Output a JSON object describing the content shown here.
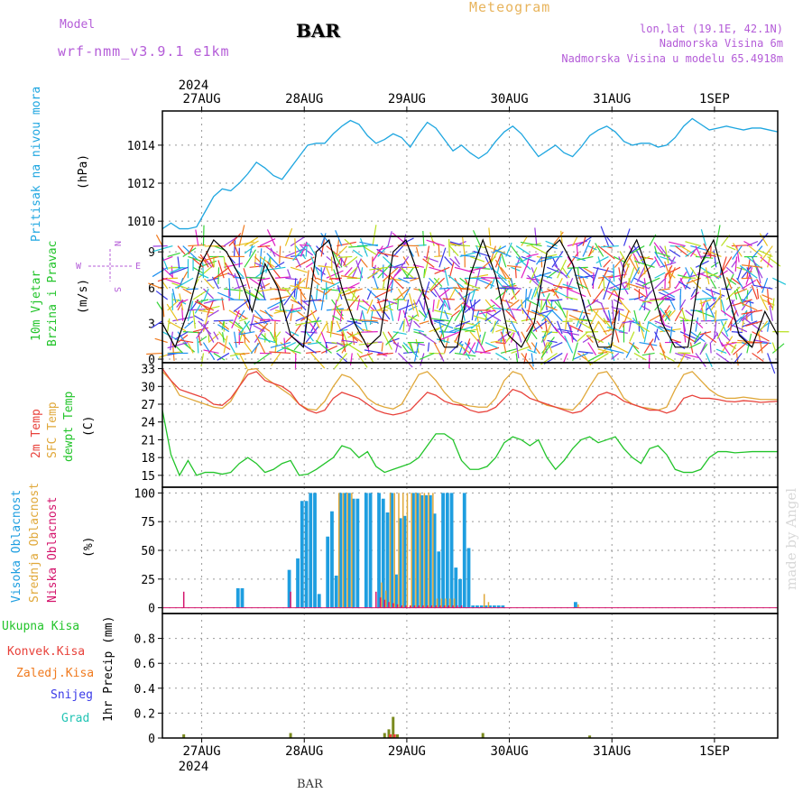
{
  "header": {
    "model_label": "Model",
    "model_name": "wrf-nmm_v3.9.1 e1km",
    "station": "BAR",
    "title": "Meteogram",
    "lonlat": "lon,lat (19.1E, 42.1N)",
    "elevation": "Nadmorska Visina 6m",
    "model_elevation": "Nadmorska Visina u modelu 65.4918m",
    "footer_station": "BAR",
    "watermark": "made by Angel"
  },
  "colors": {
    "pressure": "#1ea6e0",
    "temp2m": "#e8413a",
    "sfc_temp": "#e0a83a",
    "dewpoint": "#22c42a",
    "high_cloud": "#1e9ee0",
    "mid_cloud": "#e0a83a",
    "low_cloud": "#d4146c",
    "total_precip": "#22c42a",
    "conv_precip": "#e8413a",
    "frozen_precip": "#f07a1e",
    "snow": "#3a3ae8",
    "hail": "#22c4b4",
    "purple_text": "#b45cd8",
    "title_orange": "#e8b45c",
    "gust": "#000000"
  },
  "chart_data": [
    {
      "type": "line",
      "name": "pressure",
      "ylabel_left": "Pritisak na nivou mora",
      "unit": "(hPa)",
      "ylim": [
        1009.2,
        1015.8
      ],
      "yticks": [
        1010,
        1012,
        1014
      ],
      "grid": true,
      "top_axis": {
        "year": "2024",
        "labels": [
          "27AUG",
          "28AUG",
          "29AUG",
          "30AUG",
          "31AUG",
          "1SEP"
        ]
      },
      "x": [
        0,
        2,
        4,
        6,
        8,
        10,
        12,
        14,
        16,
        18,
        20,
        22,
        24,
        26,
        28,
        30,
        32,
        34,
        36,
        38,
        40,
        42,
        44,
        46,
        48,
        50,
        52,
        54,
        56,
        58,
        60,
        62,
        64,
        66,
        68,
        70,
        72,
        74,
        76,
        78,
        80,
        82,
        84,
        86,
        88,
        90,
        92,
        94,
        96,
        98,
        100,
        102,
        104,
        106,
        108,
        110,
        112,
        114,
        116,
        118,
        120,
        122,
        124,
        126,
        128,
        130,
        132,
        134,
        136,
        138,
        140,
        142,
        144
      ],
      "series": [
        {
          "values": [
            1009.6,
            1009.9,
            1009.6,
            1009.6,
            1009.7,
            1010.5,
            1011.3,
            1011.7,
            1011.6,
            1012.0,
            1012.5,
            1013.1,
            1012.8,
            1012.4,
            1012.2,
            1012.8,
            1013.4,
            1014.0,
            1014.1,
            1014.1,
            1014.6,
            1015.0,
            1015.3,
            1015.1,
            1014.5,
            1014.1,
            1014.3,
            1014.6,
            1014.4,
            1013.9,
            1014.6,
            1015.2,
            1014.9,
            1014.3,
            1013.7,
            1014.0,
            1013.6,
            1013.3,
            1013.6,
            1014.2,
            1014.7,
            1015.0,
            1014.6,
            1014.0,
            1013.4,
            1013.7,
            1014.0,
            1013.6,
            1013.4,
            1013.9,
            1014.5,
            1014.8,
            1015.0,
            1014.7,
            1014.2,
            1014.0,
            1014.1,
            1014.1,
            1013.9,
            1014.0,
            1014.4,
            1015.0,
            1015.4,
            1015.1,
            1014.8,
            1014.9,
            1015.0,
            1014.9,
            1014.8,
            1014.9,
            1014.9,
            1014.8,
            1014.7
          ]
        }
      ]
    },
    {
      "type": "vector",
      "name": "wind",
      "ylabel_left": [
        "10m Vjetar",
        "Brzina i Pravac"
      ],
      "unit": "(m/s)",
      "ylim": [
        -0.3,
        10.3
      ],
      "yticks": [
        0,
        3,
        6,
        9
      ],
      "compass": [
        "W",
        "E",
        "N",
        "S"
      ],
      "gust_x": [
        0,
        3,
        6,
        9,
        12,
        15,
        18,
        21,
        24,
        27,
        30,
        33,
        36,
        39,
        42,
        45,
        48,
        51,
        54,
        57,
        60,
        63,
        66,
        69,
        72,
        75,
        78,
        81,
        84,
        87,
        90,
        93,
        96,
        99,
        102,
        105,
        108,
        111,
        114,
        117,
        120,
        123,
        126,
        129,
        132,
        135,
        138,
        141,
        144
      ],
      "gust_y": [
        3,
        1,
        4,
        8,
        10,
        9,
        7,
        4,
        8,
        6,
        2,
        1,
        9,
        10,
        6,
        3,
        1,
        2,
        9,
        10,
        7,
        3,
        1,
        1,
        7,
        10,
        7,
        2,
        1,
        3,
        9,
        10,
        8,
        4,
        1,
        1,
        8,
        10,
        7,
        3,
        1,
        1,
        8,
        10,
        6,
        2,
        1,
        4,
        2
      ]
    },
    {
      "type": "line",
      "name": "temperature",
      "ylabel_left": [
        "2m Temp",
        "SFC Temp",
        "dewpt Temp"
      ],
      "unit": "(C)",
      "ylim": [
        13,
        34
      ],
      "yticks": [
        15,
        18,
        21,
        24,
        27,
        30,
        33
      ],
      "grid": true,
      "x": [
        0,
        2,
        4,
        6,
        8,
        10,
        12,
        14,
        16,
        18,
        20,
        22,
        24,
        26,
        28,
        30,
        32,
        34,
        36,
        38,
        40,
        42,
        44,
        46,
        48,
        50,
        52,
        54,
        56,
        58,
        60,
        62,
        64,
        66,
        68,
        70,
        72,
        74,
        76,
        78,
        80,
        82,
        84,
        86,
        88,
        90,
        92,
        94,
        96,
        98,
        100,
        102,
        104,
        106,
        108,
        110,
        112,
        114,
        116,
        118,
        120,
        122,
        124,
        126,
        128,
        130,
        132,
        134,
        136,
        138,
        140,
        142,
        144
      ],
      "series": [
        {
          "name": "2m Temp",
          "values": [
            33,
            31,
            29.5,
            29,
            28.5,
            28,
            27,
            26.8,
            28,
            30,
            32,
            32.5,
            31,
            30.5,
            30,
            29,
            27,
            26,
            25.5,
            26,
            28,
            29,
            28.5,
            28,
            27,
            26,
            25.5,
            25.2,
            25.5,
            26,
            27.5,
            29,
            28.5,
            27.5,
            27,
            26.8,
            26,
            25.6,
            25.8,
            26.5,
            28,
            29.5,
            29,
            28,
            27.5,
            27,
            26.5,
            26,
            25.5,
            25.8,
            27,
            28.5,
            29,
            28.5,
            27.5,
            27,
            26.5,
            26,
            26,
            25.5,
            26,
            28,
            28.5,
            28,
            28,
            27.8,
            27.5,
            27.4,
            27.6,
            27.5,
            27.3,
            27.4,
            27.5
          ]
        },
        {
          "name": "SFC Temp",
          "values": [
            32.5,
            31,
            28.5,
            28,
            27.5,
            27,
            26.5,
            26.3,
            27.5,
            30,
            32.8,
            33,
            31.5,
            30.5,
            29.5,
            28.5,
            27,
            26.2,
            26,
            27.5,
            30,
            32,
            31.5,
            30,
            28,
            27,
            26.5,
            26.2,
            27,
            29.5,
            32,
            32.5,
            31,
            29,
            27.5,
            27,
            26.7,
            26.5,
            26.5,
            28,
            31,
            32.5,
            32,
            29.5,
            27.5,
            26.8,
            26.5,
            26.2,
            26,
            27.5,
            30,
            32.2,
            32.5,
            30.5,
            28,
            27,
            26.5,
            26.3,
            26,
            26.5,
            29.5,
            32,
            32.5,
            31,
            29.5,
            28.5,
            28,
            28,
            28.2,
            28,
            27.8,
            27.8,
            27.8
          ]
        },
        {
          "name": "dewpt Temp",
          "values": [
            26,
            18.5,
            15,
            17.5,
            15,
            15.5,
            15.5,
            15.2,
            15.5,
            17,
            18,
            17,
            15.5,
            16,
            17,
            17.5,
            15,
            15.2,
            16,
            17,
            18,
            20,
            19.5,
            18,
            19,
            16.5,
            15.5,
            16,
            16.5,
            17,
            18,
            20,
            22,
            22,
            21,
            17.5,
            16,
            16,
            16.5,
            18,
            20.5,
            21.5,
            21,
            20,
            21,
            18,
            16,
            17.5,
            19.5,
            21,
            21.5,
            20.5,
            21,
            21.5,
            19.5,
            18,
            17,
            19.5,
            20,
            18.5,
            16,
            15.5,
            15.5,
            16,
            18,
            19,
            19,
            18.8,
            18.9,
            19,
            19,
            19,
            19
          ]
        }
      ]
    },
    {
      "type": "bar",
      "name": "cloud",
      "ylabel_left": [
        "Visoka Oblacnost",
        "Srednja Oblacnost",
        "Niska Oblacnost"
      ],
      "unit": "(%)",
      "ylim": [
        -5,
        105
      ],
      "yticks": [
        0,
        25,
        50,
        75,
        100
      ],
      "grid": true,
      "series": [
        {
          "name": "Visoka Oblacnost",
          "x": [
            18,
            19,
            30,
            32,
            33,
            34,
            35,
            36,
            37,
            39,
            40,
            41,
            42,
            43,
            44,
            45,
            46,
            48,
            49,
            51,
            52,
            53,
            54,
            55,
            56,
            57,
            59,
            60,
            61,
            62,
            63,
            64,
            65,
            66,
            67,
            68,
            69,
            70,
            71,
            72,
            73,
            74,
            75,
            76,
            77,
            78,
            79,
            80,
            97
          ],
          "values": [
            17,
            17,
            33,
            43,
            93,
            93,
            100,
            100,
            12,
            62,
            84,
            28,
            100,
            100,
            100,
            95,
            95,
            100,
            100,
            100,
            95,
            83,
            100,
            29,
            78,
            80,
            100,
            100,
            98,
            98,
            98,
            82,
            49,
            100,
            100,
            100,
            35,
            25,
            100,
            52,
            2,
            2,
            2,
            2,
            2,
            2,
            2,
            2,
            5
          ]
        },
        {
          "name": "Srednja Oblacnost",
          "x": [
            41,
            42,
            43,
            44,
            51,
            52,
            53,
            54,
            55,
            56,
            57,
            58,
            59,
            60,
            61,
            62,
            63,
            64,
            65,
            66,
            67,
            68,
            75,
            76,
            97
          ],
          "values": [
            100,
            100,
            100,
            100,
            22,
            15,
            100,
            100,
            100,
            100,
            100,
            100,
            100,
            100,
            100,
            100,
            100,
            8,
            8,
            8,
            8,
            8,
            12,
            5,
            3
          ]
        },
        {
          "name": "Niska Oblacnost",
          "x": [
            5,
            30,
            50,
            51,
            52,
            53,
            54,
            55,
            56,
            57,
            58,
            59,
            60,
            61,
            62,
            63,
            64,
            65,
            66,
            67,
            68,
            69,
            70
          ],
          "values": [
            14,
            14,
            14,
            9,
            7,
            5,
            4,
            3,
            2,
            2,
            2,
            2,
            2,
            2,
            2,
            2,
            2,
            2,
            2,
            2,
            2,
            2,
            2
          ]
        }
      ]
    },
    {
      "type": "bar",
      "name": "precip",
      "ylabel_left": [
        "Ukupna Kisa",
        "Konvek.Kisa",
        "Zaledj.Kisa",
        "Snijeg",
        "Grad"
      ],
      "unit": "1hr Precip (mm)",
      "ylim": [
        0,
        1.0
      ],
      "yticks": [
        0,
        0.2,
        0.4,
        0.6,
        0.8
      ],
      "grid": true,
      "bottom_axis": {
        "year": "2024",
        "labels": [
          "27AUG",
          "28AUG",
          "29AUG",
          "30AUG",
          "31AUG",
          "1SEP"
        ]
      },
      "series": [
        {
          "name": "Ukupna Kisa",
          "x": [
            5,
            30,
            52,
            53,
            54,
            55,
            75,
            100
          ],
          "values": [
            0.03,
            0.04,
            0.04,
            0.07,
            0.17,
            0.03,
            0.04,
            0.02
          ]
        },
        {
          "name": "Konvek.Kisa",
          "x": [
            53,
            54
          ],
          "values": [
            0.03,
            0.03
          ]
        }
      ]
    }
  ]
}
